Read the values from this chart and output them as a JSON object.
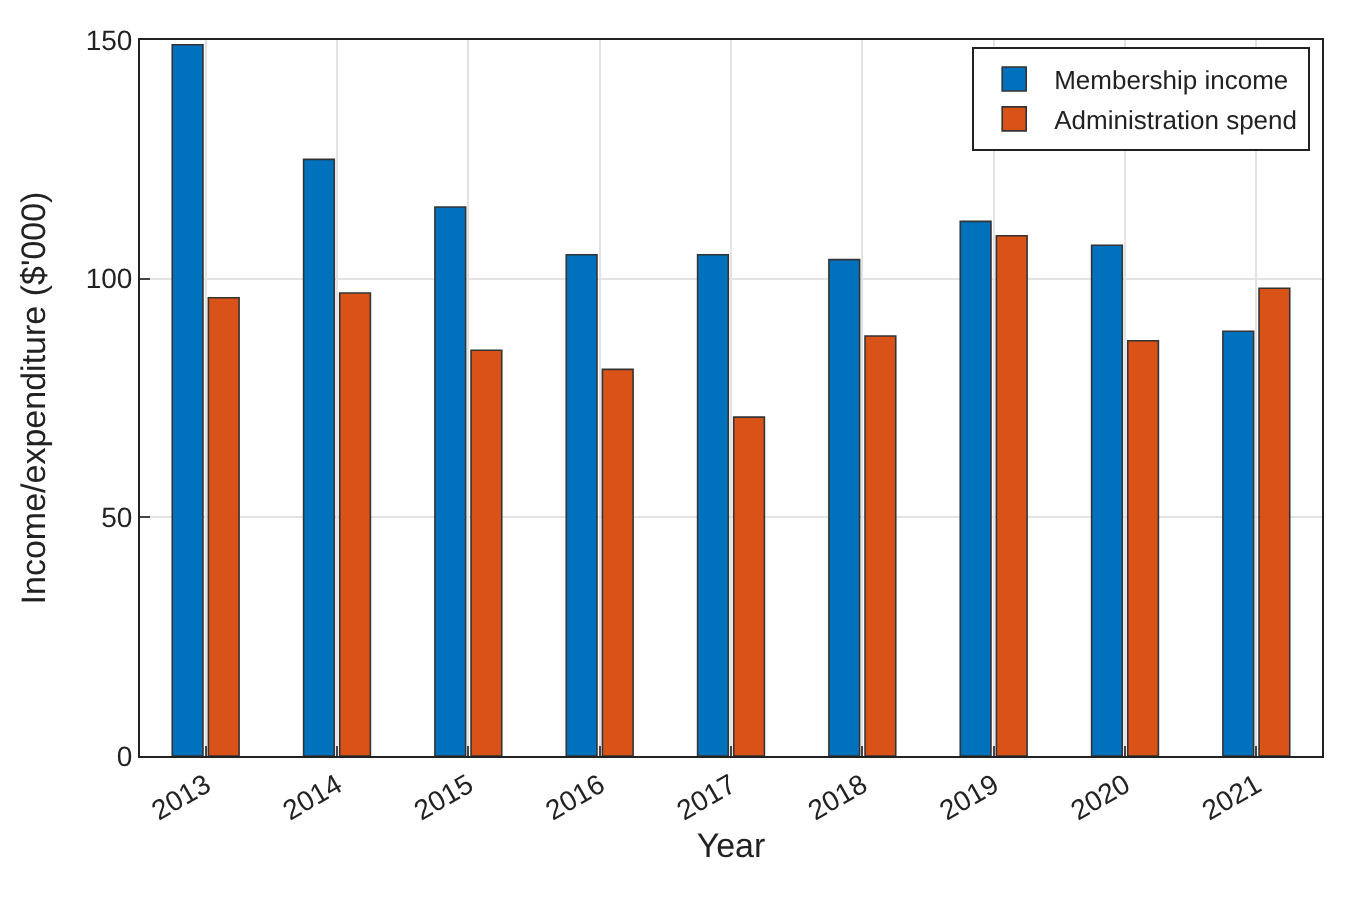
{
  "chart_data": {
    "type": "bar",
    "xlabel": "Year",
    "ylabel": "Income/expenditure ($'000)",
    "categories": [
      "2013",
      "2014",
      "2015",
      "2016",
      "2017",
      "2018",
      "2019",
      "2020",
      "2021"
    ],
    "series": [
      {
        "name": "Membership income",
        "color": "#0072bd",
        "values": [
          149,
          125,
          115,
          105,
          105,
          104,
          112,
          107,
          89
        ]
      },
      {
        "name": "Administration spend",
        "color": "#d95319",
        "values": [
          96,
          97,
          85,
          81,
          71,
          88,
          109,
          87,
          98
        ]
      }
    ],
    "ylim": [
      0,
      150
    ],
    "yticks": [
      0,
      50,
      100,
      150
    ],
    "grid": true,
    "legend": "top right"
  }
}
